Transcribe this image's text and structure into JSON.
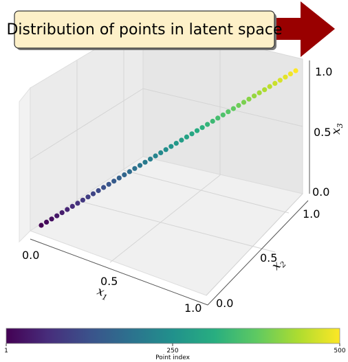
{
  "chart_data": {
    "type": "scatter",
    "projection": "3d",
    "title": "Distribution of points in latent space",
    "series": [
      {
        "n_points": 500,
        "x1": [
          0.0,
          1.0
        ],
        "x2": [
          0.0,
          1.0
        ],
        "x3": [
          0.0,
          1.0
        ],
        "color_by": "point_index"
      }
    ],
    "axes": {
      "x1": {
        "label": "x",
        "subscript": "1",
        "ticks": [
          "0.0",
          "0.5",
          "1.0"
        ],
        "range": [
          0,
          1
        ]
      },
      "x2": {
        "label": "x",
        "subscript": "2",
        "ticks": [
          "0.0",
          "0.5",
          "1.0"
        ],
        "range": [
          0,
          1
        ]
      },
      "x3": {
        "label": "x",
        "subscript": "3",
        "ticks": [
          "0.0",
          "0.5",
          "1.0"
        ],
        "range": [
          0,
          1
        ]
      }
    },
    "grid": true,
    "colorbar": {
      "label": "Point index",
      "colormap": "viridis",
      "ticks": [
        "1",
        "250",
        "500"
      ],
      "range": [
        1,
        500
      ],
      "orientation": "horizontal"
    },
    "annotation_arrow": {
      "color": "#990000"
    },
    "title_box": {
      "fill": "#fdf0c8",
      "stroke": "#333333"
    }
  }
}
